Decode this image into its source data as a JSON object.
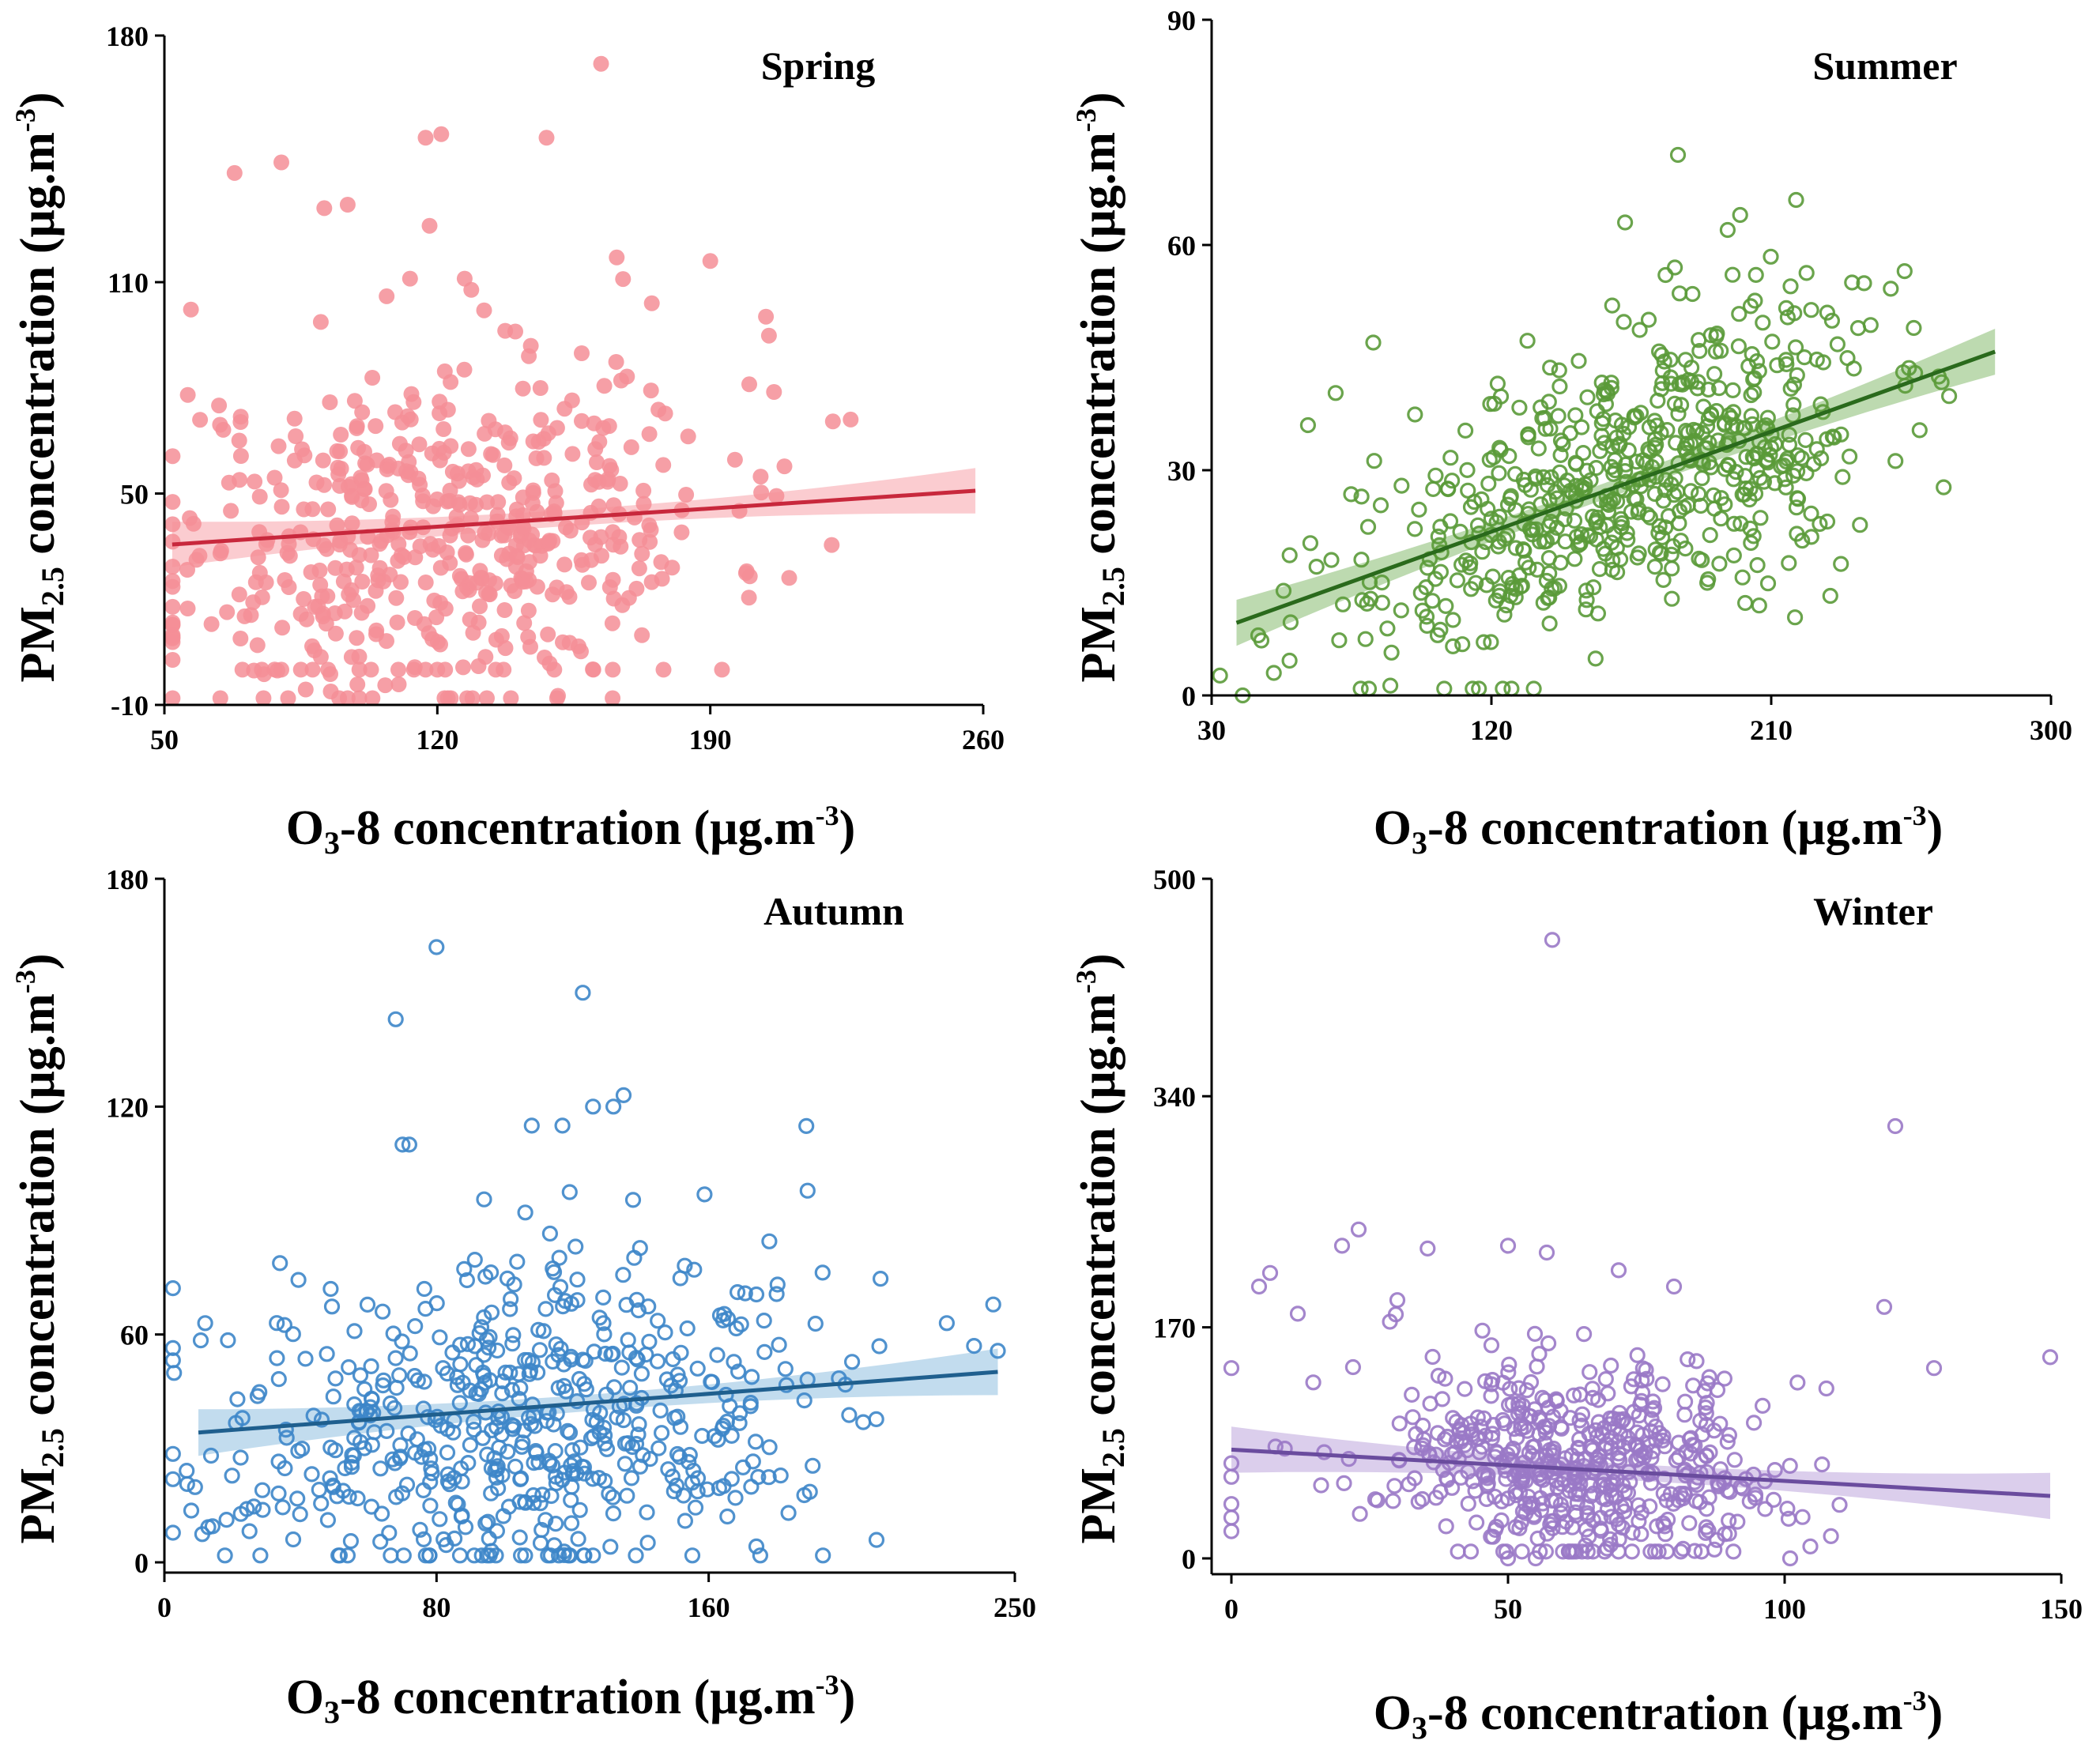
{
  "chart_data": [
    {
      "type": "scatter",
      "title": "Spring",
      "xlabel": {
        "pre": "O",
        "sub": "3",
        "post": "-8  concentration (μg.m",
        "sup": "-3",
        "end": ")"
      },
      "ylabel": {
        "pre": "PM",
        "sub": "2.5",
        "post": "  concentration (μg.m",
        "sup": "-3",
        "end": ")"
      },
      "xlim": [
        50,
        260
      ],
      "ylim": [
        -10,
        180
      ],
      "xticks": [
        50,
        120,
        190,
        260
      ],
      "yticks": [
        -10,
        50,
        110,
        180
      ],
      "xtick_labels": [
        "50",
        "120",
        "190",
        "260"
      ],
      "ytick_labels": [
        "-10",
        "50",
        "110",
        "180"
      ],
      "marker": "filled-circle",
      "color": "#f58e96",
      "line_color": "#c8283c",
      "band_color": "#f7a3aa",
      "fit": {
        "slope": 0.074,
        "intercept": 31.7,
        "x_start": 52,
        "x_end": 258
      },
      "n_points": 500,
      "center": [
        121,
        40
      ],
      "spread": [
        36,
        25
      ],
      "corr": 0.2,
      "seed": 11,
      "outliers": [
        [
          162,
          172
        ],
        [
          68,
          141
        ],
        [
          80,
          144
        ],
        [
          91,
          131
        ],
        [
          97,
          132
        ],
        [
          117,
          151
        ],
        [
          121,
          152
        ],
        [
          118,
          126
        ],
        [
          148,
          151
        ],
        [
          166,
          117
        ],
        [
          175,
          104
        ],
        [
          190,
          116
        ],
        [
          200,
          81
        ],
        [
          226,
          71
        ],
        [
          107,
          106
        ],
        [
          113,
          111
        ],
        [
          127,
          111
        ],
        [
          140,
          96
        ],
        [
          132,
          102
        ],
        [
          56,
          78
        ],
        [
          64,
          75
        ]
      ],
      "floor_points": [
        [
          70,
          0
        ],
        [
          75,
          0
        ],
        [
          80,
          0
        ],
        [
          85,
          0
        ],
        [
          88,
          0
        ],
        [
          92,
          0
        ],
        [
          100,
          0
        ],
        [
          103,
          0
        ],
        [
          110,
          0
        ],
        [
          114,
          0
        ],
        [
          117,
          0
        ],
        [
          120,
          0
        ],
        [
          122,
          0
        ],
        [
          135,
          0
        ],
        [
          137,
          0
        ],
        [
          150,
          0
        ],
        [
          160,
          0
        ],
        [
          165,
          0
        ],
        [
          178,
          0
        ],
        [
          193,
          0
        ]
      ]
    },
    {
      "type": "scatter",
      "title": "Summer",
      "xlabel": {
        "pre": "O",
        "sub": "3",
        "post": "-8  concentration (μg.m",
        "sup": "-3",
        "end": ")"
      },
      "ylabel": {
        "pre": "PM",
        "sub": "2.5",
        "post": "  concentration (μg.m",
        "sup": "-3",
        "end": ")"
      },
      "xlim": [
        30,
        300
      ],
      "ylim": [
        0,
        90
      ],
      "xticks": [
        30,
        120,
        210,
        300
      ],
      "yticks": [
        0,
        30,
        60,
        90
      ],
      "xtick_labels": [
        "30",
        "120",
        "210",
        "300"
      ],
      "ytick_labels": [
        "0",
        "30",
        "60",
        "90"
      ],
      "marker": "open-circle",
      "color": "#5a9a38",
      "line_color": "#2a6a1c",
      "band_color": "#86bb70",
      "fit": {
        "slope": 0.148,
        "intercept": 4.05,
        "x_start": 38,
        "x_end": 282
      },
      "n_points": 600,
      "center": [
        165,
        28.5
      ],
      "spread": [
        40,
        11
      ],
      "corr": 0.55,
      "seed": 22,
      "outliers": [
        [
          180,
          72
        ],
        [
          163,
          63
        ],
        [
          200,
          64
        ],
        [
          218,
          66
        ],
        [
          196,
          62
        ],
        [
          179,
          57
        ],
        [
          176,
          56
        ],
        [
          236,
          55
        ],
        [
          82,
          47
        ],
        [
          61,
          36
        ],
        [
          40,
          0
        ],
        [
          50,
          3
        ],
        [
          45,
          8
        ]
      ],
      "floor_points": []
    },
    {
      "type": "scatter",
      "title": "Autumn",
      "xlabel": {
        "pre": "O",
        "sub": "3",
        "post": "-8  concentration (μg.m",
        "sup": "-3",
        "end": ")"
      },
      "ylabel": {
        "pre": "PM",
        "sub": "2.5",
        "post": "  concentration (μg.m",
        "sup": "-3",
        "end": ")"
      },
      "xlim": [
        0,
        250
      ],
      "ylim": [
        0,
        180
      ],
      "xticks": [
        0,
        80,
        160,
        250
      ],
      "yticks": [
        0,
        60,
        120,
        180
      ],
      "xtick_labels": [
        "0",
        "80",
        "160",
        "250"
      ],
      "ytick_labels": [
        "0",
        "60",
        "120",
        "180"
      ],
      "marker": "open-circle",
      "color": "#3d86c9",
      "line_color": "#1f5f8e",
      "band_color": "#8fbfe0",
      "fit": {
        "slope": 0.068,
        "intercept": 33.5,
        "x_start": 10,
        "x_end": 245
      },
      "n_points": 560,
      "center": [
        105,
        37
      ],
      "spread": [
        45,
        22
      ],
      "corr": 0.12,
      "seed": 33,
      "outliers": [
        [
          80,
          162
        ],
        [
          68,
          143
        ],
        [
          123,
          150
        ],
        [
          126,
          120
        ],
        [
          132,
          120
        ],
        [
          135,
          123
        ],
        [
          108,
          115
        ],
        [
          117,
          115
        ],
        [
          72,
          110
        ],
        [
          70,
          110
        ],
        [
          12,
          63
        ],
        [
          230,
          63
        ],
        [
          238,
          57
        ]
      ],
      "floor_points": []
    },
    {
      "type": "scatter",
      "title": "Winter",
      "xlabel": {
        "pre": "O",
        "sub": "3",
        "post": "-8  concentration (μg.m",
        "sup": "-3",
        "end": ")"
      },
      "ylabel": {
        "pre": "PM",
        "sub": "2.5",
        "post": "  concentration (μg.m",
        "sup": "-3",
        "end": ")"
      },
      "xlim": [
        0,
        150
      ],
      "ylim": [
        0,
        500
      ],
      "xticks": [
        0,
        50,
        100,
        150
      ],
      "yticks": [
        0,
        170,
        340,
        500
      ],
      "xtick_labels": [
        "0",
        "50",
        "100",
        "150"
      ],
      "ytick_labels": [
        "0",
        "170",
        "340",
        "500"
      ],
      "marker": "open-circle",
      "color": "#9a79c7",
      "line_color": "#6a4c9e",
      "band_color": "#bda6dd",
      "fit": {
        "slope": -0.23,
        "intercept": 80,
        "x_start": 0,
        "x_end": 148
      },
      "n_points": 540,
      "center": [
        62,
        70
      ],
      "spread": [
        18,
        40
      ],
      "corr": -0.1,
      "seed": 44,
      "outliers": [
        [
          58,
          455
        ],
        [
          120,
          318
        ],
        [
          23,
          242
        ],
        [
          20,
          230
        ],
        [
          50,
          230
        ],
        [
          7,
          210
        ],
        [
          5,
          200
        ],
        [
          57,
          225
        ],
        [
          70,
          212
        ],
        [
          80,
          200
        ],
        [
          12,
          180
        ],
        [
          30,
          190
        ],
        [
          148,
          148
        ],
        [
          118,
          185
        ],
        [
          127,
          140
        ],
        [
          0,
          140
        ],
        [
          0,
          40
        ],
        [
          0,
          30
        ],
        [
          0,
          20
        ],
        [
          0,
          60
        ],
        [
          0,
          70
        ],
        [
          101,
          0
        ],
        [
          50,
          0
        ],
        [
          55,
          0
        ]
      ],
      "floor_points": []
    }
  ]
}
